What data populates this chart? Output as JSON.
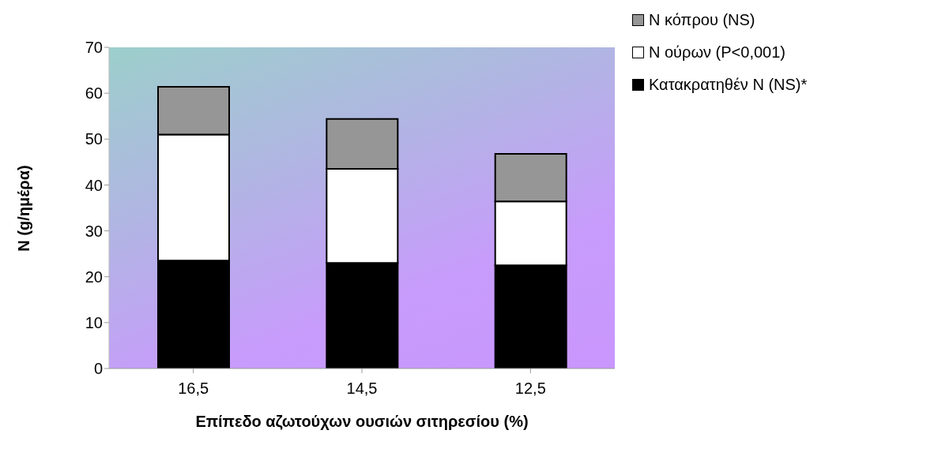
{
  "chart_data": {
    "type": "bar",
    "stacked": true,
    "xlabel": "Επίπεδο αζωτούχων ουσιών σιτηρεσίου (%)",
    "ylabel": "N (g/ημέρα)",
    "categories": [
      "16,5",
      "14,5",
      "12,5"
    ],
    "series": [
      {
        "name": "Κατακρατηθέν N (NS)*",
        "color": "#000000",
        "values": [
          23.5,
          23.0,
          22.5
        ]
      },
      {
        "name": "N ούρων (P<0,001)",
        "color": "#ffffff",
        "values": [
          27.5,
          20.5,
          13.9
        ]
      },
      {
        "name": "N κόπρου (NS)",
        "color": "#969696",
        "values": [
          10.4,
          10.9,
          10.4
        ]
      }
    ],
    "ylim": [
      0,
      70
    ],
    "yticks": [
      0,
      10,
      20,
      30,
      40,
      50,
      60,
      70
    ],
    "legend": "top right",
    "grid": false
  }
}
